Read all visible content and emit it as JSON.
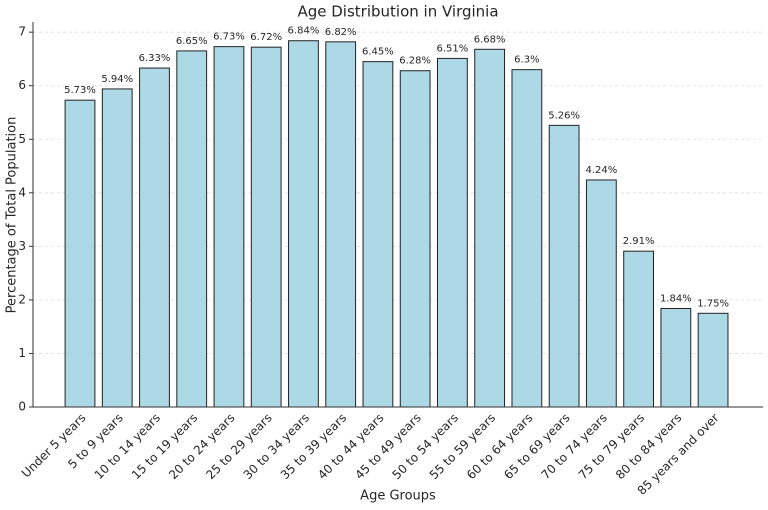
{
  "chart_data": {
    "type": "bar",
    "title": "Age Distribution in Virginia",
    "x_label": "Age Groups",
    "y_label": "Percentage of Total Population",
    "categories": [
      "Under 5 years",
      "5 to 9 years",
      "10 to 14 years",
      "15 to 19 years",
      "20 to 24 years",
      "25 to 29 years",
      "30 to 34 years",
      "35 to 39 years",
      "40 to 44 years",
      "45 to 49 years",
      "50 to 54 years",
      "55 to 59 years",
      "60 to 64 years",
      "65 to 69 years",
      "70 to 74 years",
      "75 to 79 years",
      "80 to 84 years",
      "85 years and over"
    ],
    "values": [
      5.73,
      5.94,
      6.33,
      6.65,
      6.73,
      6.72,
      6.84,
      6.82,
      6.45,
      6.28,
      6.51,
      6.68,
      6.3,
      5.26,
      4.24,
      2.91,
      1.84,
      1.75
    ],
    "value_labels": [
      "5.73%",
      "5.94%",
      "6.33%",
      "6.65%",
      "6.73%",
      "6.72%",
      "6.84%",
      "6.82%",
      "6.45%",
      "6.28%",
      "6.51%",
      "6.68%",
      "6.3%",
      "5.26%",
      "4.24%",
      "2.91%",
      "1.84%",
      "1.75%"
    ],
    "color": "#add8e6",
    "ylim": [
      0,
      7.19
    ],
    "yticks": [
      0,
      1,
      2,
      3,
      4,
      5,
      6,
      7
    ],
    "grid": true
  }
}
